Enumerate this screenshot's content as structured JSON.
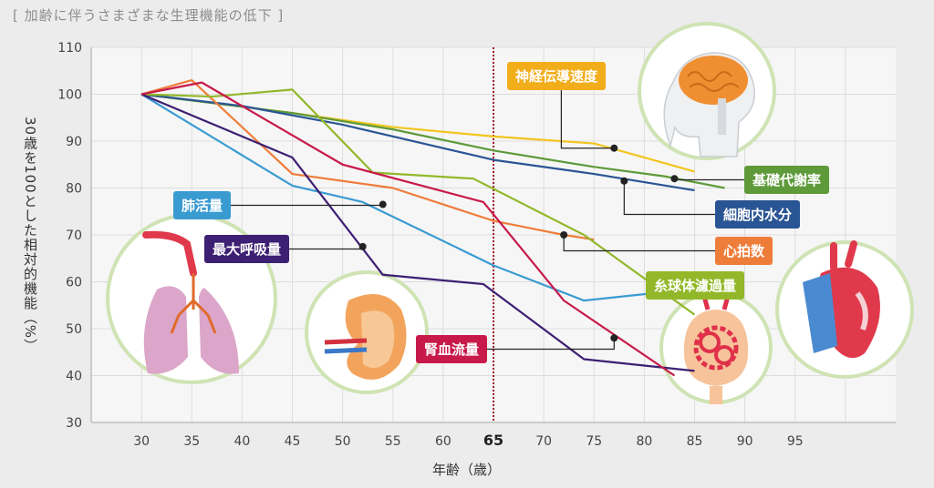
{
  "header": {
    "title": "[ 加齢に伴うさまざまな生理機能の低下 ]"
  },
  "chart_data": {
    "type": "line",
    "title": "加齢に伴うさまざまな生理機能の低下",
    "xlabel": "年齢（歳）",
    "ylabel": "30歳を100とした相対的機能（%）",
    "xlim": [
      25,
      105
    ],
    "ylim": [
      30,
      110
    ],
    "xticks": [
      30,
      35,
      40,
      45,
      50,
      55,
      60,
      65,
      70,
      75,
      80,
      85,
      90,
      95
    ],
    "yticks": [
      30,
      40,
      50,
      60,
      70,
      80,
      90,
      100,
      110
    ],
    "highlight_x": 65,
    "grid": true,
    "series": [
      {
        "name": "神経伝導速度",
        "color": "#f2c51f",
        "points": [
          [
            30,
            100
          ],
          [
            45,
            96
          ],
          [
            55,
            93
          ],
          [
            65,
            91
          ],
          [
            75,
            89.5
          ],
          [
            85,
            83.5
          ]
        ]
      },
      {
        "name": "基礎代謝率",
        "color": "#5e9a3a",
        "points": [
          [
            30,
            100
          ],
          [
            45,
            96
          ],
          [
            55,
            92.5
          ],
          [
            65,
            88
          ],
          [
            75,
            84.5
          ],
          [
            82,
            82.5
          ],
          [
            88,
            80
          ]
        ]
      },
      {
        "name": "細胞内水分",
        "color": "#2a5594",
        "points": [
          [
            30,
            100
          ],
          [
            40,
            97.5
          ],
          [
            50,
            93.5
          ],
          [
            65,
            86
          ],
          [
            75,
            83
          ],
          [
            85,
            79.5
          ]
        ]
      },
      {
        "name": "心拍数",
        "color": "#ee7d3a",
        "points": [
          [
            30,
            100
          ],
          [
            35,
            103
          ],
          [
            45,
            83
          ],
          [
            55,
            80
          ],
          [
            65,
            73
          ],
          [
            72,
            70
          ],
          [
            75,
            69
          ]
        ]
      },
      {
        "name": "糸球体濾過量",
        "color": "#92b82a",
        "points": [
          [
            30,
            100
          ],
          [
            37,
            99.5
          ],
          [
            45,
            101
          ],
          [
            53,
            83.3
          ],
          [
            63,
            82
          ],
          [
            74,
            70
          ],
          [
            85,
            53
          ]
        ]
      },
      {
        "name": "肺活量",
        "color": "#3a9bd1",
        "points": [
          [
            30,
            100
          ],
          [
            45,
            80.5
          ],
          [
            52,
            77
          ],
          [
            65,
            63.5
          ],
          [
            74,
            56
          ],
          [
            85,
            58.5
          ]
        ]
      },
      {
        "name": "最大呼吸量",
        "color": "#3d1f73",
        "points": [
          [
            30,
            100
          ],
          [
            45,
            86.5
          ],
          [
            54,
            61.5
          ],
          [
            64,
            59.5
          ],
          [
            74,
            43.5
          ],
          [
            85,
            41
          ]
        ]
      },
      {
        "name": "腎血流量",
        "color": "#c81a4a",
        "points": [
          [
            30,
            100
          ],
          [
            36,
            102.5
          ],
          [
            50,
            85
          ],
          [
            64,
            77
          ],
          [
            72,
            56
          ],
          [
            83,
            40
          ]
        ]
      }
    ],
    "annotations": [
      {
        "text": "神経伝導速度",
        "series": "神経伝導速度",
        "at": [
          77,
          88.5
        ],
        "color": "#f2ad1a"
      },
      {
        "text": "基礎代謝率",
        "series": "基礎代謝率",
        "at": [
          83,
          82
        ],
        "color": "#5e9a3a"
      },
      {
        "text": "細胞内水分",
        "series": "細胞内水分",
        "at": [
          78,
          81.5
        ],
        "color": "#2a5594"
      },
      {
        "text": "心拍数",
        "series": "心拍数",
        "at": [
          72,
          70
        ],
        "color": "#ee7d3a"
      },
      {
        "text": "糸球体濾過量",
        "series": "糸球体濾過量",
        "at": [
          81,
          60
        ],
        "color": "#92b82a"
      },
      {
        "text": "肺活量",
        "series": "肺活量",
        "at": [
          54,
          76.5
        ],
        "color": "#3a9bd1"
      },
      {
        "text": "最大呼吸量",
        "series": "最大呼吸量",
        "at": [
          52,
          67.5
        ],
        "color": "#3d1f73"
      },
      {
        "text": "腎血流量",
        "series": "腎血流量",
        "at": [
          77,
          48
        ],
        "color": "#c81a4a"
      }
    ]
  }
}
